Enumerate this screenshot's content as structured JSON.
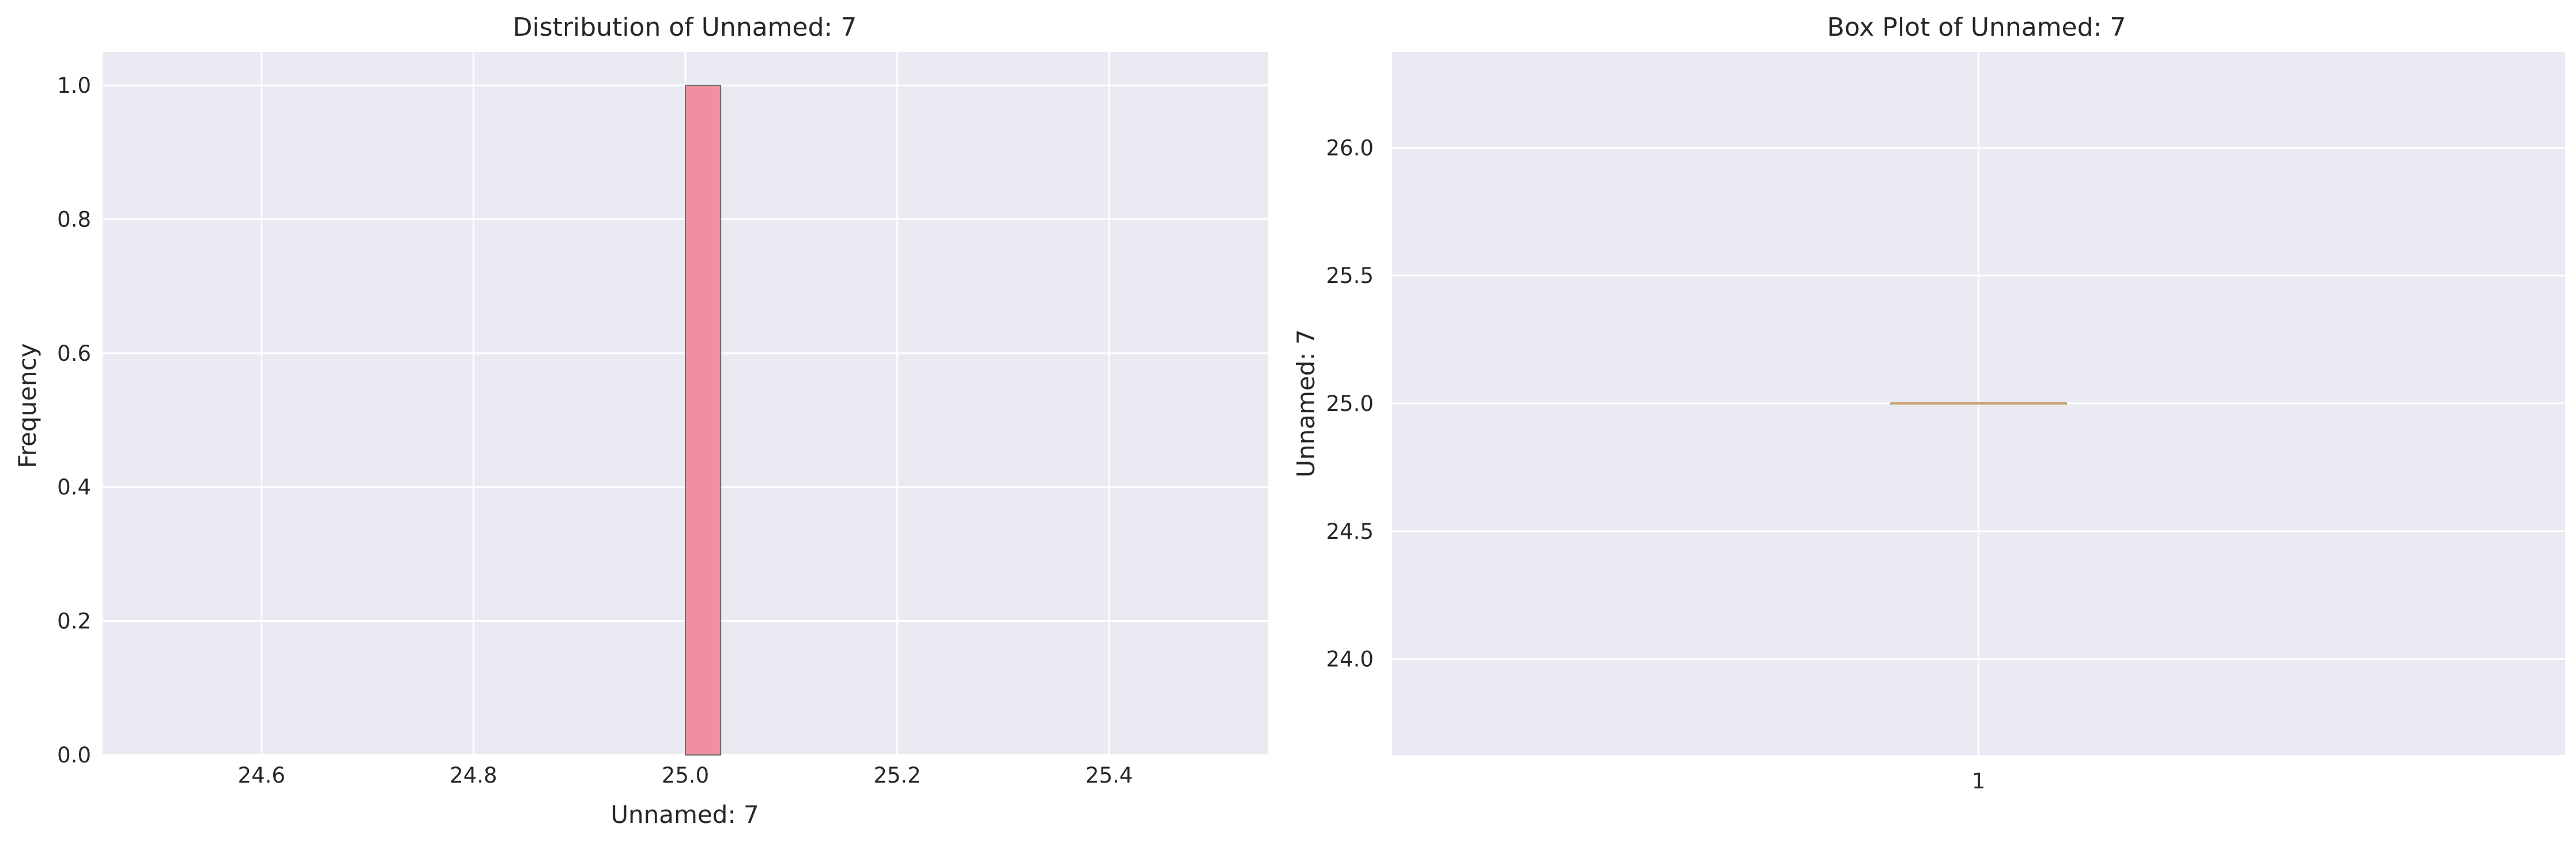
{
  "chart_data": [
    {
      "type": "bar",
      "title": "Distribution of Unnamed: 7",
      "xlabel": "Unnamed: 7",
      "ylabel": "Frequency",
      "xlim": [
        24.45,
        25.55
      ],
      "ylim": [
        0,
        1.05
      ],
      "xticks": [
        24.6,
        24.8,
        25.0,
        25.2,
        25.4
      ],
      "xtick_labels": [
        "24.6",
        "24.8",
        "25.0",
        "25.2",
        "25.4"
      ],
      "yticks": [
        0.0,
        0.2,
        0.4,
        0.6,
        0.8,
        1.0
      ],
      "ytick_labels": [
        "0.0",
        "0.2",
        "0.4",
        "0.6",
        "0.8",
        "1.0"
      ],
      "bins": [
        {
          "x0": 25.0,
          "x1": 25.0333,
          "count": 1
        }
      ],
      "bar_color": "#f08fa2",
      "grid": true
    },
    {
      "type": "box",
      "title": "Box Plot of Unnamed: 7",
      "xlabel": "",
      "ylabel": "Unnamed: 7",
      "ylim": [
        23.625,
        26.375
      ],
      "yticks": [
        24.0,
        24.5,
        25.0,
        25.5,
        26.0
      ],
      "ytick_labels": [
        "24.0",
        "24.5",
        "25.0",
        "25.5",
        "26.0"
      ],
      "categories": [
        "1"
      ],
      "boxes": [
        {
          "category": "1",
          "min": 25.0,
          "q1": 25.0,
          "median": 25.0,
          "q3": 25.0,
          "max": 25.0
        }
      ],
      "median_color": "#c8a46e",
      "grid": true
    }
  ],
  "colors": {
    "plot_background": "#eaeaf2",
    "grid": "#ffffff"
  }
}
